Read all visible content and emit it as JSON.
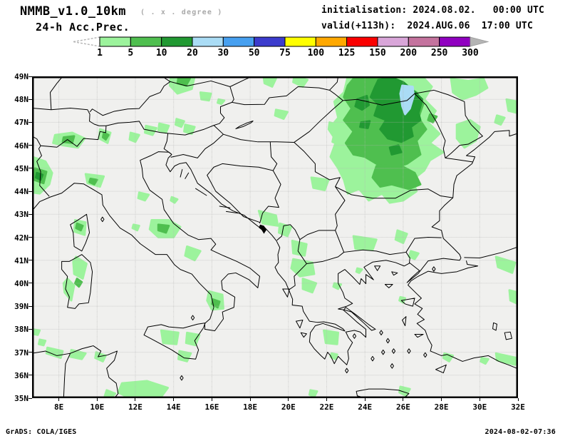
{
  "header": {
    "model_title": "NMMB_v1.0_10km",
    "model_subtitle": "( . x . degree )",
    "field_title": "24-h Acc.Prec.",
    "init_line": "initialisation: 2024.08.02.   00:00 UTC",
    "valid_line": "valid(+113h):  2024.AUG.06  17:00 UTC"
  },
  "colorbar": {
    "tick_labels": [
      "1",
      "5",
      "10",
      "20",
      "30",
      "50",
      "75",
      "100",
      "125",
      "150",
      "200",
      "250",
      "300"
    ],
    "segment_colors": [
      "#9cf39c",
      "#4fbf4f",
      "#219932",
      "#aadcf5",
      "#47a0f0",
      "#3c3ccd",
      "#ffff00",
      "#ffa800",
      "#fa0000",
      "#d9a6d9",
      "#c4739e",
      "#9000c0"
    ],
    "below_min_arrow_color": "#ffffff",
    "below_min_arrow_outline": "#b4b4b4",
    "above_max_arrow_color": "#b4b4b4"
  },
  "map": {
    "x_tick_labels": [
      "8E",
      "10E",
      "12E",
      "14E",
      "16E",
      "18E",
      "20E",
      "22E",
      "24E",
      "26E",
      "28E",
      "30E",
      "32E"
    ],
    "y_tick_labels": [
      "49N",
      "48N",
      "47N",
      "46N",
      "45N",
      "44N",
      "43N",
      "42N",
      "41N",
      "40N",
      "39N",
      "38N",
      "37N",
      "36N",
      "35N"
    ],
    "background_color": "#f0f0ee",
    "gridline_color": "#b4b4b4",
    "outline_color": "#000000",
    "precip_level_colors": {
      "1": "#9cf39c",
      "5": "#4fbf4f",
      "10": "#219932",
      "20": "#aadcf5"
    }
  },
  "footer": {
    "left": "GrADS: COLA/IGES",
    "right": "2024-08-02-07:36"
  }
}
